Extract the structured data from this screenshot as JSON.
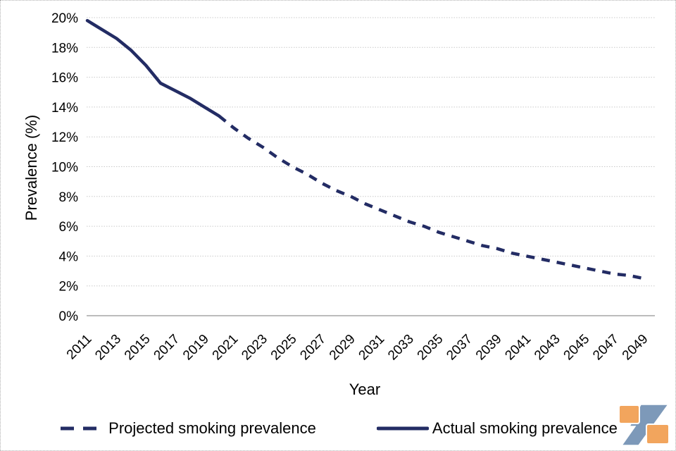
{
  "chart_data": {
    "type": "line",
    "title": "",
    "xlabel": "Year",
    "ylabel": "Prevalence (%)",
    "x_tick_years": [
      2011,
      2013,
      2015,
      2017,
      2019,
      2021,
      2023,
      2025,
      2027,
      2029,
      2031,
      2033,
      2035,
      2037,
      2039,
      2041,
      2043,
      2045,
      2047,
      2049
    ],
    "y_tick_values": [
      0,
      2,
      4,
      6,
      8,
      10,
      12,
      14,
      16,
      18,
      20
    ],
    "y_tick_labels": [
      "0%",
      "2%",
      "4%",
      "6%",
      "8%",
      "10%",
      "12%",
      "14%",
      "16%",
      "18%",
      "20%"
    ],
    "xlim": [
      2011,
      2049
    ],
    "ylim": [
      0,
      20
    ],
    "grid": true,
    "legend_position": "bottom",
    "line_color": "#232c64",
    "grid_color": "#c9c9c9",
    "axis_line_color": "#a6a6a6",
    "series": [
      {
        "name": "Projected smoking prevalence",
        "style": "dashed",
        "x": [
          2020,
          2021,
          2022,
          2023,
          2024,
          2025,
          2026,
          2027,
          2028,
          2029,
          2030,
          2031,
          2032,
          2033,
          2034,
          2035,
          2036,
          2037,
          2038,
          2039,
          2040,
          2041,
          2042,
          2043,
          2044,
          2045,
          2046,
          2047,
          2048,
          2049
        ],
        "values": [
          13.4,
          12.6,
          11.9,
          11.3,
          10.6,
          10.0,
          9.5,
          8.9,
          8.4,
          8.0,
          7.5,
          7.1,
          6.7,
          6.3,
          6.0,
          5.6,
          5.3,
          5.0,
          4.7,
          4.5,
          4.2,
          4.0,
          3.8,
          3.6,
          3.4,
          3.2,
          3.0,
          2.8,
          2.7,
          2.5
        ]
      },
      {
        "name": "Actual smoking prevalence",
        "style": "solid",
        "x": [
          2011,
          2012,
          2013,
          2014,
          2015,
          2016,
          2017,
          2018,
          2019,
          2020
        ],
        "values": [
          19.8,
          19.2,
          18.6,
          17.8,
          16.8,
          15.6,
          15.1,
          14.6,
          14.0,
          13.4
        ]
      }
    ]
  },
  "legend": {
    "projected_label": "Projected smoking prevalence",
    "actual_label": "Actual smoking prevalence"
  },
  "logo": {
    "orange": "#f2a55d",
    "blue": "#7d99b9"
  }
}
